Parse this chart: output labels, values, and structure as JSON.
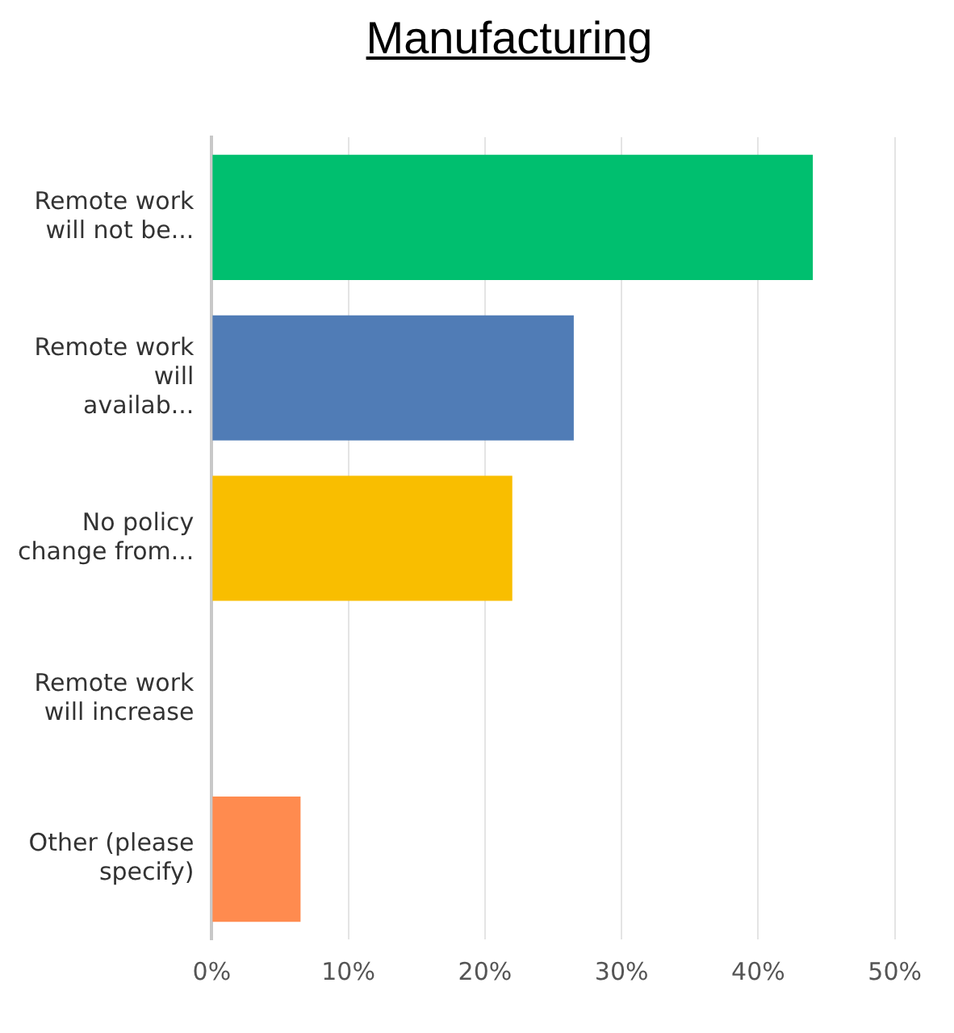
{
  "chart_data": {
    "type": "bar",
    "orientation": "horizontal",
    "title": "Manufacturing",
    "categories": [
      "Remote work will not be...",
      "Remote work will availab...",
      "No policy change from...",
      "Remote work will increase",
      "Other (please specify)"
    ],
    "values": [
      44,
      26.5,
      22,
      0,
      6.5
    ],
    "colors": [
      "#00bf6f",
      "#507cb6",
      "#f9be00",
      "#00bf6f",
      "#ff8b4f"
    ],
    "xlim": [
      0,
      50
    ],
    "xticks": [
      {
        "value": 0,
        "label": "0%"
      },
      {
        "value": 10,
        "label": "10%"
      },
      {
        "value": 20,
        "label": "20%"
      },
      {
        "value": 30,
        "label": "30%"
      },
      {
        "value": 40,
        "label": "40%"
      },
      {
        "value": 50,
        "label": "50%"
      }
    ],
    "grid": "x"
  }
}
